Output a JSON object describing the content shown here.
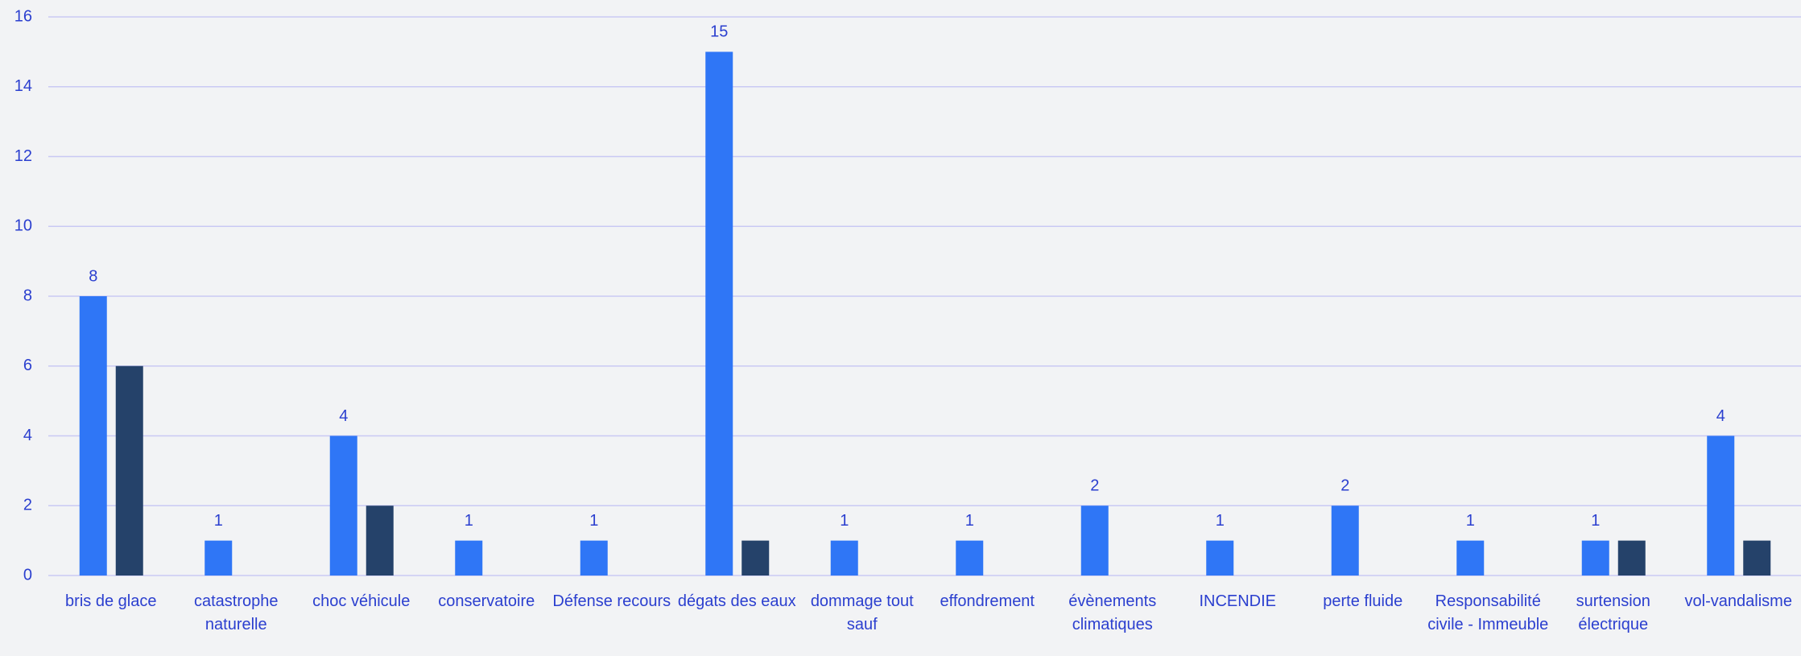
{
  "chart_data": {
    "type": "bar",
    "categories": [
      "bris de glace",
      "catastrophe naturelle",
      "choc véhicule",
      "conservatoire",
      "Défense recours",
      "dégats des eaux",
      "dommage tout sauf",
      "effondrement",
      "évènements climatiques",
      "INCENDIE",
      "perte fluide",
      "Responsabilité civile - Immeuble",
      "surtension électrique",
      "vol-vandalisme"
    ],
    "series": [
      {
        "color": "#2f76f6",
        "values": [
          8,
          1,
          4,
          1,
          1,
          15,
          1,
          1,
          2,
          1,
          2,
          1,
          1,
          4
        ]
      },
      {
        "color": "#25426a",
        "values": [
          6,
          null,
          2,
          null,
          null,
          1,
          null,
          null,
          null,
          null,
          null,
          null,
          1,
          1
        ]
      }
    ],
    "data_labels_series": 0,
    "ylim": [
      0,
      16
    ],
    "yticks": [
      0,
      2,
      4,
      6,
      8,
      10,
      12,
      14,
      16
    ],
    "grid": true
  }
}
